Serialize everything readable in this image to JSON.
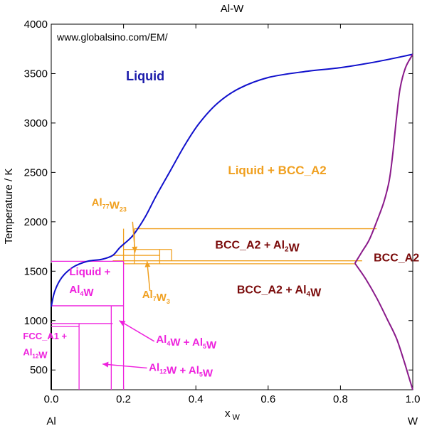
{
  "chart_data": {
    "type": "line",
    "title": "Al-W",
    "watermark": "www.globalsino.com/EM/",
    "xlabel": "x",
    "xlabel_sub": "W",
    "ylabel": "Temperature / K",
    "xlim": [
      0,
      1
    ],
    "ylim": [
      300,
      4000
    ],
    "x_ticks": [
      0.0,
      0.2,
      0.4,
      0.6,
      0.8,
      1.0
    ],
    "x_tick_labels": [
      "0.0",
      "0.2",
      "0.4",
      "0.6",
      "0.8",
      "1.0"
    ],
    "y_ticks": [
      500,
      1000,
      1500,
      2000,
      2500,
      3000,
      3500,
      4000
    ],
    "y_tick_labels": [
      "500",
      "1000",
      "1500",
      "2000",
      "2500",
      "3000",
      "3500",
      "4000"
    ],
    "endpoint_labels": {
      "left": "Al",
      "right": "W"
    },
    "colors": {
      "liquidus": "#1010cc",
      "bcc_boundary": "#8a1a8a",
      "intermetallic": "#f0a020",
      "al_rich": "#ee22dd",
      "label_dark": "#7a0a0a",
      "label_liquid": "#1a1aaa"
    },
    "series": [
      {
        "name": "Liquidus",
        "color": "#1010cc",
        "points": [
          [
            0.0,
            1140
          ],
          [
            0.01,
            1300
          ],
          [
            0.03,
            1440
          ],
          [
            0.06,
            1540
          ],
          [
            0.1,
            1600
          ],
          [
            0.14,
            1620
          ],
          [
            0.17,
            1660
          ],
          [
            0.19,
            1740
          ],
          [
            0.215,
            1820
          ],
          [
            0.23,
            1880
          ],
          [
            0.26,
            2050
          ],
          [
            0.29,
            2260
          ],
          [
            0.33,
            2520
          ],
          [
            0.37,
            2780
          ],
          [
            0.41,
            3000
          ],
          [
            0.46,
            3200
          ],
          [
            0.52,
            3350
          ],
          [
            0.6,
            3460
          ],
          [
            0.7,
            3520
          ],
          [
            0.8,
            3560
          ],
          [
            0.9,
            3620
          ],
          [
            1.0,
            3695
          ]
        ]
      },
      {
        "name": "BCC_A2 liquidus",
        "color": "#8a1a8a",
        "points": [
          [
            0.84,
            1580
          ],
          [
            0.86,
            1700
          ],
          [
            0.88,
            1820
          ],
          [
            0.9,
            2000
          ],
          [
            0.92,
            2200
          ],
          [
            0.935,
            2420
          ],
          [
            0.945,
            2700
          ],
          [
            0.955,
            3050
          ],
          [
            0.965,
            3350
          ],
          [
            0.98,
            3560
          ],
          [
            1.0,
            3695
          ]
        ]
      },
      {
        "name": "BCC_A2 lower boundary",
        "color": "#8a1a8a",
        "points": [
          [
            0.84,
            1580
          ],
          [
            0.87,
            1420
          ],
          [
            0.9,
            1230
          ],
          [
            0.93,
            1010
          ],
          [
            0.955,
            820
          ],
          [
            0.975,
            600
          ],
          [
            0.99,
            420
          ],
          [
            1.0,
            300
          ]
        ]
      }
    ],
    "horizontal_lines": [
      {
        "color": "#f0a020",
        "y": 1930,
        "x1": 0.23,
        "x2": 0.9
      },
      {
        "color": "#f0a020",
        "y": 1720,
        "x1": 0.2,
        "x2": 0.333
      },
      {
        "color": "#f0a020",
        "y": 1660,
        "x1": 0.17,
        "x2": 0.3
      },
      {
        "color": "#f0a020",
        "y": 1605,
        "x1": 0.17,
        "x2": 0.86
      },
      {
        "color": "#f0a020",
        "y": 1575,
        "x1": 0.2,
        "x2": 0.84
      },
      {
        "color": "#ee22dd",
        "y": 1600,
        "x1": 0.0,
        "x2": 0.2
      },
      {
        "color": "#ee22dd",
        "y": 1150,
        "x1": 0.0,
        "x2": 0.2
      },
      {
        "color": "#ee22dd",
        "y": 970,
        "x1": 0.0,
        "x2": 0.17
      },
      {
        "color": "#ee22dd",
        "y": 940,
        "x1": 0.0,
        "x2": 0.077
      }
    ],
    "vertical_lines": [
      {
        "color": "#f0a020",
        "x": 0.2,
        "y1": 1575,
        "y2": 1930
      },
      {
        "color": "#f0a020",
        "x": 0.23,
        "y1": 1575,
        "y2": 1930
      },
      {
        "color": "#f0a020",
        "x": 0.3,
        "y1": 1575,
        "y2": 1720
      },
      {
        "color": "#f0a020",
        "x": 0.333,
        "y1": 1605,
        "y2": 1720
      },
      {
        "color": "#ee22dd",
        "x": 0.077,
        "y1": 300,
        "y2": 970
      },
      {
        "color": "#ee22dd",
        "x": 0.166,
        "y1": 300,
        "y2": 1150
      },
      {
        "color": "#ee22dd",
        "x": 0.2,
        "y1": 300,
        "y2": 1600
      }
    ],
    "annotations": [
      {
        "parts": [
          [
            "Liquid",
            ""
          ]
        ],
        "color": "#1a1aaa",
        "x": 0.26,
        "y": 3430,
        "size": 18,
        "anchor": "middle"
      },
      {
        "parts": [
          [
            "Liquid + BCC_A2",
            ""
          ]
        ],
        "color": "#f0a020",
        "x": 0.625,
        "y": 2480,
        "size": 17,
        "anchor": "middle"
      },
      {
        "parts": [
          [
            "Al",
            "77"
          ],
          [
            "W",
            "23"
          ]
        ],
        "color": "#f0a020",
        "x": 0.16,
        "y": 2160,
        "size": 15,
        "anchor": "middle"
      },
      {
        "parts": [
          [
            "BCC_A2 + Al",
            "2"
          ],
          [
            "W",
            ""
          ]
        ],
        "color": "#7a0a0a",
        "x": 0.57,
        "y": 1730,
        "size": 16,
        "anchor": "middle"
      },
      {
        "parts": [
          [
            "BCC_A2",
            ""
          ]
        ],
        "color": "#7a0a0a",
        "x": 0.955,
        "y": 1600,
        "size": 16,
        "anchor": "middle"
      },
      {
        "parts": [
          [
            "BCC_A2 + Al",
            "4"
          ],
          [
            "W",
            ""
          ]
        ],
        "color": "#7a0a0a",
        "x": 0.63,
        "y": 1275,
        "size": 16,
        "anchor": "middle"
      },
      {
        "parts": [
          [
            "Al",
            "7"
          ],
          [
            "W",
            "3"
          ]
        ],
        "color": "#f0a020",
        "x": 0.29,
        "y": 1230,
        "size": 15,
        "anchor": "middle"
      },
      {
        "parts": [
          [
            "Liquid +",
            ""
          ]
        ],
        "color": "#ee22dd",
        "x": 0.05,
        "y": 1460,
        "size": 15,
        "anchor": "start"
      },
      {
        "parts": [
          [
            "Al",
            "4"
          ],
          [
            "W",
            ""
          ]
        ],
        "color": "#ee22dd",
        "x": 0.05,
        "y": 1280,
        "size": 15,
        "anchor": "start"
      },
      {
        "parts": [
          [
            "FCC_A1 +",
            ""
          ]
        ],
        "color": "#ee22dd",
        "x": -0.078,
        "y": 810,
        "size": 13,
        "anchor": "start"
      },
      {
        "parts": [
          [
            "Al",
            "12"
          ],
          [
            "W",
            ""
          ]
        ],
        "color": "#ee22dd",
        "x": -0.078,
        "y": 650,
        "size": 13,
        "anchor": "start"
      },
      {
        "parts": [
          [
            "Al",
            "4"
          ],
          [
            "W + Al",
            "5"
          ],
          [
            "W",
            ""
          ]
        ],
        "color": "#ee22dd",
        "x": 0.29,
        "y": 775,
        "size": 15,
        "anchor": "start"
      },
      {
        "parts": [
          [
            "Al",
            "12"
          ],
          [
            "W + Al",
            "5"
          ],
          [
            "W",
            ""
          ]
        ],
        "color": "#ee22dd",
        "x": 0.27,
        "y": 490,
        "size": 15,
        "anchor": "start"
      }
    ],
    "arrows": [
      {
        "color": "#f0a020",
        "from": [
          0.225,
          2000
        ],
        "to": [
          0.232,
          1690
        ]
      },
      {
        "color": "#f0a020",
        "from": [
          0.273,
          1300
        ],
        "to": [
          0.265,
          1600
        ]
      },
      {
        "color": "#ee22dd",
        "from": [
          0.285,
          790
        ],
        "to": [
          0.188,
          1000
        ]
      },
      {
        "color": "#ee22dd",
        "from": [
          0.265,
          520
        ],
        "to": [
          0.142,
          560
        ]
      }
    ]
  }
}
